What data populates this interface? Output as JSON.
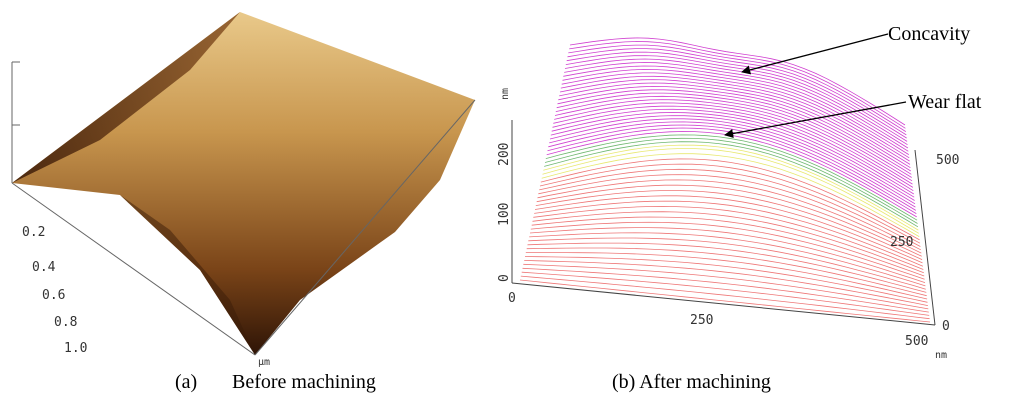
{
  "panel_a": {
    "label": "(a)",
    "caption": "Before machining",
    "x_ticks": [
      "0.2",
      "0.4",
      "0.6",
      "0.8",
      "1.0"
    ],
    "x_unit": "µm"
  },
  "panel_b": {
    "caption": "(b) After machining",
    "z_ticks": [
      "0",
      "100",
      "200"
    ],
    "z_unit": "nm",
    "x_ticks": [
      "0",
      "250",
      "500"
    ],
    "x_unit": "nm",
    "y_ticks": [
      "0",
      "250",
      "500"
    ],
    "annotations": [
      "Concavity",
      "Wear flat"
    ]
  }
}
